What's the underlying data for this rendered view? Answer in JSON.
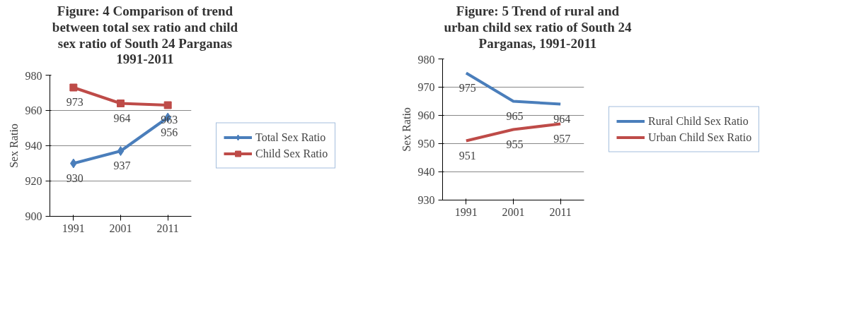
{
  "chart_data": [
    {
      "type": "line",
      "title": "Figure: 4 Comparison of trend between total sex ratio and child sex ratio of South 24 Parganas 1991-2011",
      "ylabel": "Sex Ratio",
      "categories": [
        "1991",
        "2001",
        "2011"
      ],
      "ylim": [
        900,
        980
      ],
      "yticks": [
        900,
        920,
        940,
        960,
        980
      ],
      "grid": "y",
      "legend": "right",
      "data_labels": true,
      "series": [
        {
          "name": "Total Sex Ratio",
          "color": "#4a7ebb",
          "marker": "diamond",
          "values": [
            930,
            937,
            956
          ]
        },
        {
          "name": "Child Sex Ratio",
          "color": "#be4b48",
          "marker": "square",
          "values": [
            973,
            964,
            963
          ]
        }
      ]
    },
    {
      "type": "line",
      "title": "Figure: 5 Trend of rural and urban child sex ratio of South 24 Parganas, 1991-2011",
      "ylabel": "Sex Ratio",
      "categories": [
        "1991",
        "2001",
        "2011"
      ],
      "ylim": [
        930,
        980
      ],
      "yticks": [
        930,
        940,
        950,
        960,
        970,
        980
      ],
      "grid": "y",
      "legend": "right",
      "data_labels": true,
      "marker": "none",
      "series": [
        {
          "name": "Rural Child Sex Ratio",
          "color": "#4a7ebb",
          "values": [
            975,
            965,
            964
          ]
        },
        {
          "name": "Urban Child Sex Ratio",
          "color": "#be4b48",
          "values": [
            951,
            955,
            957
          ]
        }
      ]
    }
  ]
}
